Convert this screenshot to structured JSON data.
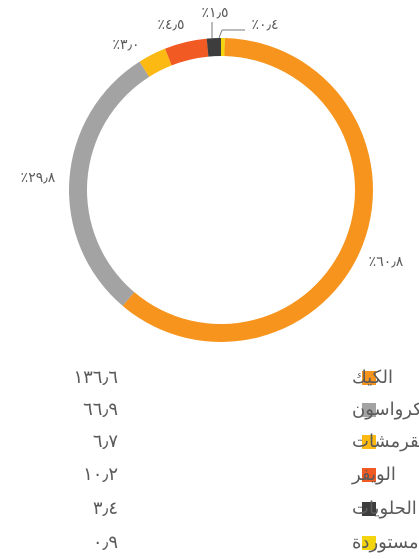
{
  "chart_data": {
    "type": "pie",
    "donut": true,
    "categories": [
      "الكيك",
      "الكرواسون",
      "المقرمشات",
      "الويفر",
      "الحلويات",
      "منتجات مستوردة"
    ],
    "values": [
      60.8,
      29.8,
      3.0,
      4.5,
      1.5,
      0.4
    ],
    "value_labels": [
      "٪٦٠٫٨",
      "٪٢٩٫٨",
      "٪٣٫٠",
      "٪٤٫٥",
      "٪١٫٥",
      "٪٠٫٤"
    ],
    "legend_values": [
      136.6,
      66.9,
      6.7,
      10.2,
      3.4,
      0.9
    ],
    "legend_value_labels": [
      "١٣٦٫٦",
      "٦٦٫٩",
      "٦٫٧",
      "١٠٫٢",
      "٣٫٤",
      "٠٫٩"
    ],
    "colors": [
      "#f7941d",
      "#a3a3a3",
      "#fdb913",
      "#f15a22",
      "#3d3d3d",
      "#f2d40f"
    ]
  }
}
